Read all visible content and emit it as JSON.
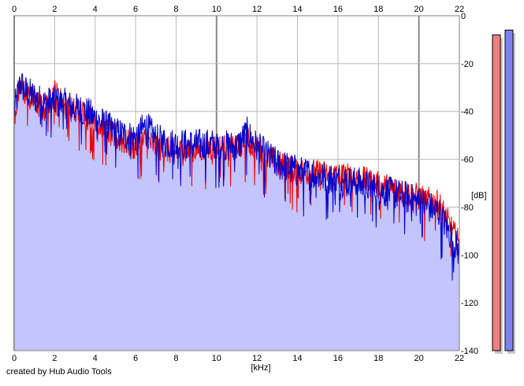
{
  "chart_data": {
    "type": "area",
    "title": "",
    "xlabel": "[kHz]",
    "ylabel": "[dB]",
    "xlim": [
      0,
      22
    ],
    "ylim": [
      -140,
      0
    ],
    "x_ticks": [
      0,
      2,
      4,
      6,
      8,
      10,
      12,
      14,
      16,
      18,
      20,
      22
    ],
    "y_ticks": [
      0,
      -20,
      -40,
      -60,
      -80,
      -100,
      -120,
      -140
    ],
    "grid": true,
    "legend": "none",
    "series": [
      {
        "color": "#0000cc",
        "fill": "#c4c4ff",
        "x": [
          0.0,
          0.3,
          0.6,
          1.0,
          1.5,
          2.0,
          2.5,
          3.0,
          3.5,
          4.0,
          5.0,
          6.0,
          6.5,
          7.0,
          8.0,
          9.0,
          10.0,
          11.0,
          11.5,
          12.0,
          13.0,
          14.0,
          15.0,
          16.0,
          17.0,
          18.0,
          19.0,
          20.0,
          21.0,
          22.0
        ],
        "values": [
          -40,
          -28,
          -32,
          -34,
          -37,
          -36,
          -37,
          -39,
          -40,
          -43,
          -49,
          -51,
          -46,
          -52,
          -54,
          -54,
          -54,
          -55,
          -49,
          -55,
          -62,
          -65,
          -67,
          -69,
          -70,
          -73,
          -75,
          -78,
          -82,
          -99
        ]
      },
      {
        "color": "#ee0000",
        "x": [
          0.0,
          0.3,
          0.6,
          1.0,
          1.5,
          2.0,
          2.5,
          3.0,
          3.5,
          4.0,
          5.0,
          6.0,
          6.5,
          7.0,
          8.0,
          9.0,
          10.0,
          11.0,
          11.5,
          12.0,
          13.0,
          14.0,
          15.0,
          16.0,
          17.0,
          18.0,
          19.0,
          20.0,
          21.0,
          22.0
        ],
        "values": [
          -42,
          -30,
          -33,
          -36,
          -39,
          -32,
          -38,
          -40,
          -41,
          -44,
          -51,
          -55,
          -52,
          -55,
          -57,
          -56,
          -55,
          -56,
          -52,
          -56,
          -62,
          -65,
          -66,
          -67,
          -68,
          -71,
          -73,
          -76,
          -79,
          -96
        ]
      }
    ],
    "level_meters": [
      {
        "color": "#f08080",
        "level_db": -8
      },
      {
        "color": "#8080f0",
        "level_db": -6
      }
    ]
  },
  "footer": {
    "credit": "created by Hub Audio Tools"
  }
}
